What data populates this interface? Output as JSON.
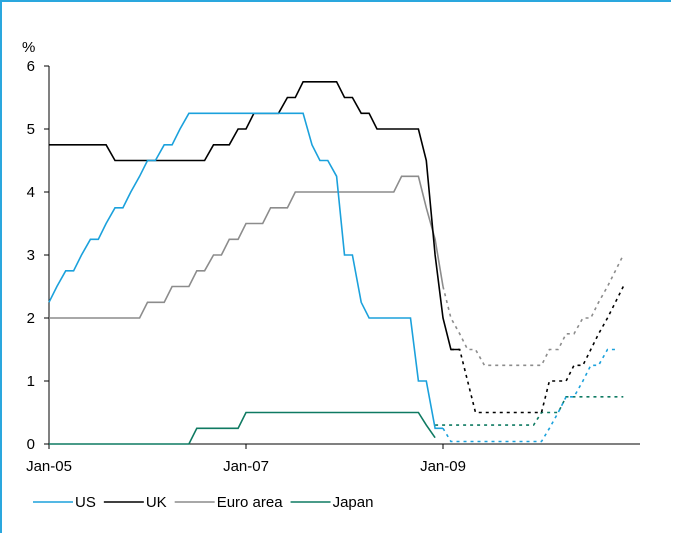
{
  "chart_data": {
    "type": "line",
    "ylabel": "%",
    "ylim": [
      0,
      6
    ],
    "yticks": [
      "0",
      "1",
      "2",
      "3",
      "4",
      "5",
      "6"
    ],
    "xlim": [
      2005.0,
      2011.0
    ],
    "xticks": [
      {
        "value": 2005.0,
        "label": "Jan-05"
      },
      {
        "value": 2007.0,
        "label": "Jan-07"
      },
      {
        "value": 2009.0,
        "label": "Jan-09"
      }
    ],
    "legend_position": "bottom",
    "series": [
      {
        "name": "US",
        "color": "#1ba1dc",
        "points": [
          [
            2005.0,
            2.25
          ],
          [
            2005.08,
            2.5
          ],
          [
            2005.17,
            2.75
          ],
          [
            2005.25,
            2.75
          ],
          [
            2005.33,
            3.0
          ],
          [
            2005.42,
            3.25
          ],
          [
            2005.5,
            3.25
          ],
          [
            2005.58,
            3.5
          ],
          [
            2005.67,
            3.75
          ],
          [
            2005.75,
            3.75
          ],
          [
            2005.83,
            4.0
          ],
          [
            2005.92,
            4.25
          ],
          [
            2006.0,
            4.5
          ],
          [
            2006.08,
            4.5
          ],
          [
            2006.17,
            4.75
          ],
          [
            2006.25,
            4.75
          ],
          [
            2006.33,
            5.0
          ],
          [
            2006.42,
            5.25
          ],
          [
            2006.5,
            5.25
          ],
          [
            2006.58,
            5.25
          ],
          [
            2007.0,
            5.25
          ],
          [
            2007.5,
            5.25
          ],
          [
            2007.58,
            5.25
          ],
          [
            2007.67,
            4.75
          ],
          [
            2007.75,
            4.5
          ],
          [
            2007.83,
            4.5
          ],
          [
            2007.92,
            4.25
          ],
          [
            2008.0,
            3.0
          ],
          [
            2008.08,
            3.0
          ],
          [
            2008.17,
            2.25
          ],
          [
            2008.25,
            2.0
          ],
          [
            2008.33,
            2.0
          ],
          [
            2008.5,
            2.0
          ],
          [
            2008.67,
            2.0
          ],
          [
            2008.75,
            1.0
          ],
          [
            2008.83,
            1.0
          ],
          [
            2008.92,
            0.25
          ],
          [
            2009.0,
            0.25
          ]
        ],
        "forecast": [
          [
            2009.0,
            0.25
          ],
          [
            2009.08,
            0.04
          ],
          [
            2009.92,
            0.04
          ],
          [
            2010.0,
            0.04
          ],
          [
            2010.08,
            0.25
          ],
          [
            2010.17,
            0.5
          ],
          [
            2010.25,
            0.75
          ],
          [
            2010.33,
            0.75
          ],
          [
            2010.42,
            1.0
          ],
          [
            2010.5,
            1.25
          ],
          [
            2010.58,
            1.25
          ],
          [
            2010.67,
            1.5
          ],
          [
            2010.75,
            1.5
          ]
        ]
      },
      {
        "name": "UK",
        "color": "#000000",
        "points": [
          [
            2005.0,
            4.75
          ],
          [
            2005.58,
            4.75
          ],
          [
            2005.67,
            4.5
          ],
          [
            2006.0,
            4.5
          ],
          [
            2006.58,
            4.5
          ],
          [
            2006.67,
            4.75
          ],
          [
            2006.83,
            4.75
          ],
          [
            2006.92,
            5.0
          ],
          [
            2007.0,
            5.0
          ],
          [
            2007.08,
            5.25
          ],
          [
            2007.33,
            5.25
          ],
          [
            2007.42,
            5.5
          ],
          [
            2007.5,
            5.5
          ],
          [
            2007.58,
            5.75
          ],
          [
            2007.92,
            5.75
          ],
          [
            2008.0,
            5.5
          ],
          [
            2008.08,
            5.5
          ],
          [
            2008.17,
            5.25
          ],
          [
            2008.25,
            5.25
          ],
          [
            2008.33,
            5.0
          ],
          [
            2008.75,
            5.0
          ],
          [
            2008.83,
            4.5
          ],
          [
            2008.92,
            3.0
          ],
          [
            2009.0,
            2.0
          ],
          [
            2009.08,
            1.5
          ],
          [
            2009.17,
            1.5
          ]
        ],
        "forecast": [
          [
            2009.08,
            1.5
          ],
          [
            2009.17,
            1.5
          ],
          [
            2009.25,
            1.0
          ],
          [
            2009.33,
            0.5
          ],
          [
            2010.0,
            0.5
          ],
          [
            2010.08,
            1.0
          ],
          [
            2010.17,
            1.0
          ],
          [
            2010.25,
            1.0
          ],
          [
            2010.33,
            1.25
          ],
          [
            2010.42,
            1.25
          ],
          [
            2010.5,
            1.5
          ],
          [
            2010.58,
            1.75
          ],
          [
            2010.67,
            2.0
          ],
          [
            2010.75,
            2.25
          ],
          [
            2010.83,
            2.5
          ]
        ]
      },
      {
        "name": "Euro area",
        "color": "#8c8c8c",
        "points": [
          [
            2005.0,
            2.0
          ],
          [
            2005.83,
            2.0
          ],
          [
            2005.92,
            2.0
          ],
          [
            2006.0,
            2.25
          ],
          [
            2006.17,
            2.25
          ],
          [
            2006.25,
            2.5
          ],
          [
            2006.42,
            2.5
          ],
          [
            2006.5,
            2.75
          ],
          [
            2006.58,
            2.75
          ],
          [
            2006.67,
            3.0
          ],
          [
            2006.75,
            3.0
          ],
          [
            2006.83,
            3.25
          ],
          [
            2006.92,
            3.25
          ],
          [
            2007.0,
            3.5
          ],
          [
            2007.17,
            3.5
          ],
          [
            2007.25,
            3.75
          ],
          [
            2007.42,
            3.75
          ],
          [
            2007.5,
            4.0
          ],
          [
            2008.42,
            4.0
          ],
          [
            2008.5,
            4.0
          ],
          [
            2008.58,
            4.25
          ],
          [
            2008.75,
            4.25
          ],
          [
            2008.83,
            3.75
          ],
          [
            2008.92,
            3.25
          ],
          [
            2009.0,
            2.5
          ]
        ],
        "forecast": [
          [
            2009.0,
            2.5
          ],
          [
            2009.08,
            2.0
          ],
          [
            2009.17,
            1.75
          ],
          [
            2009.25,
            1.5
          ],
          [
            2009.33,
            1.5
          ],
          [
            2009.42,
            1.25
          ],
          [
            2010.0,
            1.25
          ],
          [
            2010.08,
            1.5
          ],
          [
            2010.17,
            1.5
          ],
          [
            2010.25,
            1.75
          ],
          [
            2010.33,
            1.75
          ],
          [
            2010.42,
            2.0
          ],
          [
            2010.5,
            2.0
          ],
          [
            2010.58,
            2.25
          ],
          [
            2010.67,
            2.5
          ],
          [
            2010.75,
            2.75
          ],
          [
            2010.83,
            3.0
          ]
        ]
      },
      {
        "name": "Japan",
        "color": "#0f7a62",
        "points": [
          [
            2005.0,
            0.0
          ],
          [
            2006.42,
            0.0
          ],
          [
            2006.5,
            0.25
          ],
          [
            2006.92,
            0.25
          ],
          [
            2007.0,
            0.5
          ],
          [
            2008.75,
            0.5
          ],
          [
            2008.83,
            0.3
          ],
          [
            2008.92,
            0.1
          ]
        ],
        "forecast": [
          [
            2008.92,
            0.3
          ],
          [
            2009.0,
            0.3
          ],
          [
            2009.08,
            0.3
          ],
          [
            2009.92,
            0.3
          ],
          [
            2010.0,
            0.5
          ],
          [
            2010.17,
            0.5
          ],
          [
            2010.25,
            0.75
          ],
          [
            2010.83,
            0.75
          ]
        ]
      }
    ]
  }
}
